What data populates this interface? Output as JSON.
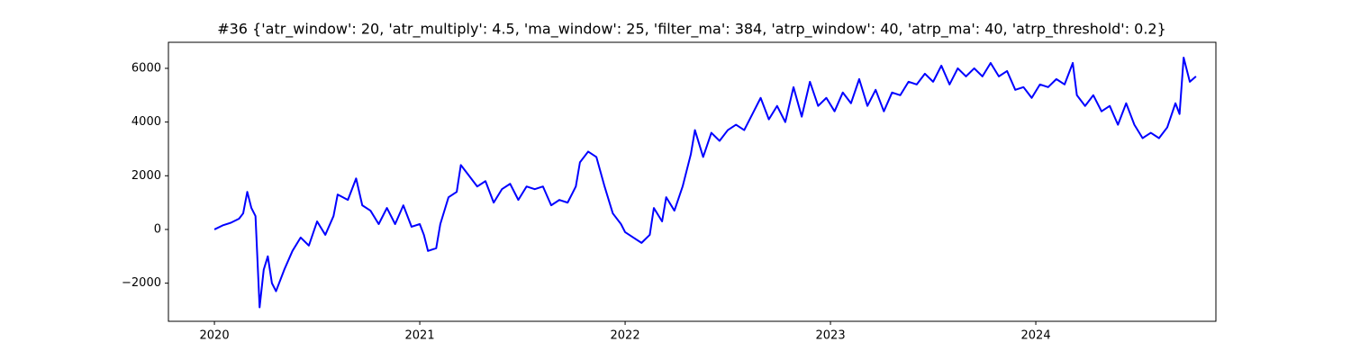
{
  "chart_data": {
    "type": "line",
    "title": "#36 {'atr_window': 20, 'atr_multiply': 4.5, 'ma_window': 25, 'filter_ma': 384, 'atrp_window': 40, 'atrp_ma': 40, 'atrp_threshold': 0.2}",
    "x": [
      2020.0,
      2020.04,
      2020.08,
      2020.12,
      2020.14,
      2020.16,
      2020.18,
      2020.2,
      2020.22,
      2020.24,
      2020.26,
      2020.28,
      2020.3,
      2020.34,
      2020.38,
      2020.42,
      2020.46,
      2020.5,
      2020.54,
      2020.58,
      2020.6,
      2020.65,
      2020.69,
      2020.72,
      2020.76,
      2020.8,
      2020.84,
      2020.88,
      2020.92,
      2020.96,
      2021.0,
      2021.02,
      2021.04,
      2021.08,
      2021.1,
      2021.14,
      2021.18,
      2021.2,
      2021.24,
      2021.28,
      2021.32,
      2021.36,
      2021.4,
      2021.44,
      2021.48,
      2021.52,
      2021.56,
      2021.6,
      2021.64,
      2021.68,
      2021.72,
      2021.76,
      2021.78,
      2021.82,
      2021.86,
      2021.9,
      2021.94,
      2021.98,
      2022.0,
      2022.04,
      2022.08,
      2022.12,
      2022.14,
      2022.18,
      2022.2,
      2022.24,
      2022.28,
      2022.32,
      2022.34,
      2022.38,
      2022.42,
      2022.46,
      2022.5,
      2022.54,
      2022.58,
      2022.62,
      2022.66,
      2022.7,
      2022.74,
      2022.78,
      2022.82,
      2022.86,
      2022.9,
      2022.94,
      2022.98,
      2023.02,
      2023.06,
      2023.1,
      2023.14,
      2023.18,
      2023.22,
      2023.26,
      2023.3,
      2023.34,
      2023.38,
      2023.42,
      2023.46,
      2023.5,
      2023.54,
      2023.58,
      2023.62,
      2023.66,
      2023.7,
      2023.74,
      2023.78,
      2023.82,
      2023.86,
      2023.9,
      2023.94,
      2023.98,
      2024.02,
      2024.06,
      2024.1,
      2024.14,
      2024.18,
      2024.2,
      2024.24,
      2024.28,
      2024.32,
      2024.36,
      2024.4,
      2024.44,
      2024.48,
      2024.52,
      2024.56,
      2024.6,
      2024.64,
      2024.68,
      2024.7,
      2024.72,
      2024.75,
      2024.78
    ],
    "series": [
      {
        "color": "#0000ff",
        "values": [
          0,
          150,
          250,
          400,
          600,
          1400,
          800,
          500,
          -2900,
          -1500,
          -1000,
          -2000,
          -2300,
          -1500,
          -800,
          -300,
          -600,
          300,
          -200,
          500,
          1300,
          1100,
          1900,
          900,
          700,
          200,
          800,
          200,
          900,
          100,
          200,
          -200,
          -800,
          -700,
          200,
          1200,
          1400,
          2400,
          2000,
          1600,
          1800,
          1000,
          1500,
          1700,
          1100,
          1600,
          1500,
          1600,
          900,
          1100,
          1000,
          1600,
          2500,
          2900,
          2700,
          1600,
          600,
          200,
          -100,
          -300,
          -500,
          -200,
          800,
          300,
          1200,
          700,
          1600,
          2800,
          3700,
          2700,
          3600,
          3300,
          3700,
          3900,
          3700,
          4300,
          4900,
          4100,
          4600,
          4000,
          5300,
          4200,
          5500,
          4600,
          4900,
          4400,
          5100,
          4700,
          5600,
          4600,
          5200,
          4400,
          5100,
          5000,
          5500,
          5400,
          5800,
          5500,
          6100,
          5400,
          6000,
          5700,
          6000,
          5700,
          6200,
          5700,
          5900,
          5200,
          5300,
          4900,
          5400,
          5300,
          5600,
          5400,
          6200,
          5000,
          4600,
          5000,
          4400,
          4600,
          3900,
          4700,
          3900,
          3400,
          3600,
          3400,
          3800,
          4700,
          4300,
          6400,
          5500,
          5700
        ]
      }
    ],
    "xlim": [
      2019.776,
      2024.877
    ],
    "xticks": [
      2020,
      2021,
      2022,
      2023,
      2024
    ],
    "ylim": [
      -3420,
      6970
    ],
    "yticks": [
      {
        "value": -2000,
        "label": "−2000"
      },
      0,
      2000,
      4000,
      6000
    ]
  }
}
